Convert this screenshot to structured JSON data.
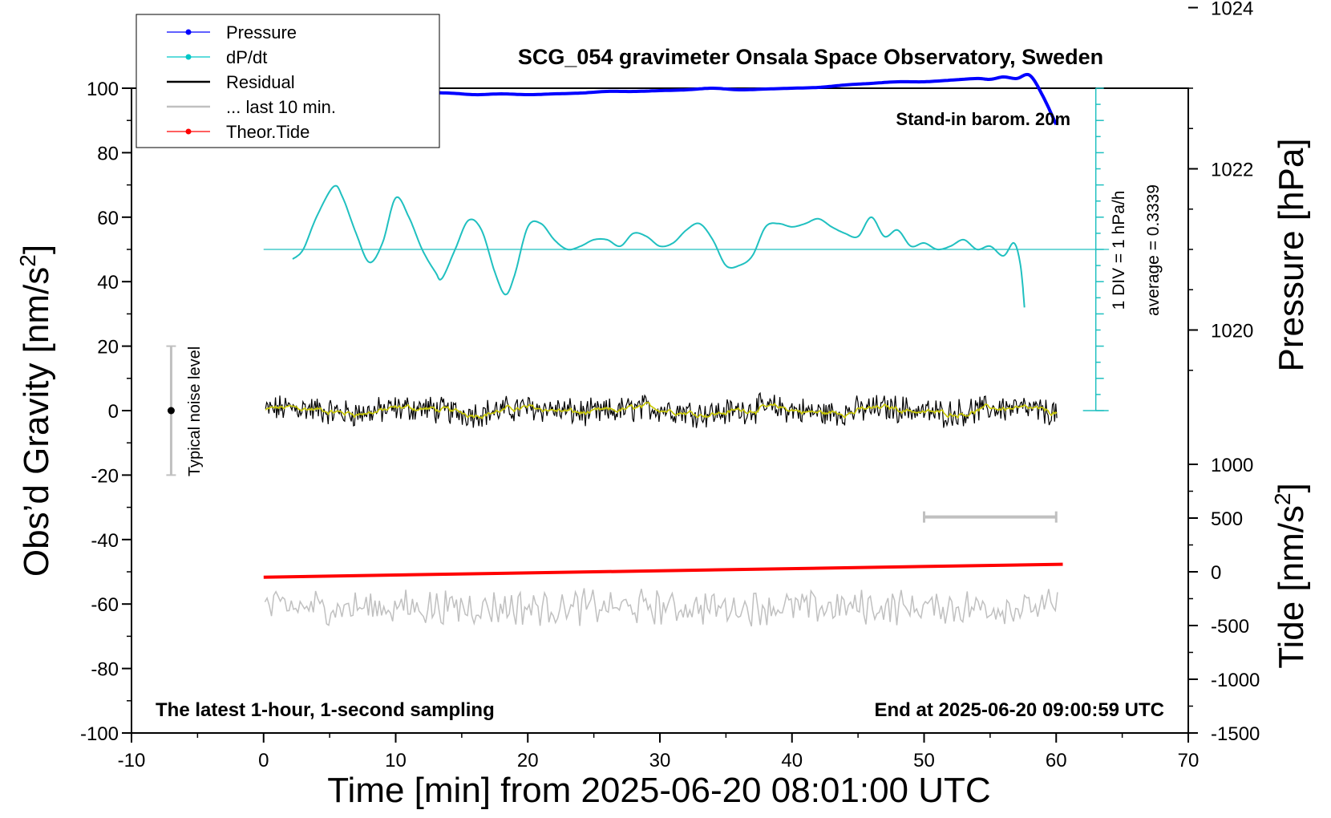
{
  "chart_data": {
    "type": "line",
    "title": "SCG_054 gravimeter Onsala Space Observatory, Sweden",
    "xlabel": "Time [min] from 2025-06-20 08:01:00 UTC",
    "ylabel_left_prefix": "Obs’d Gravity [nm/s",
    "ylabel_left_sup": "2",
    "ylabel_left_suffix": "]",
    "ylabel_right_pressure": "Pressure [hPa]",
    "ylabel_right_tide_prefix": "Tide [nm/s",
    "ylabel_right_tide_sup": "2",
    "ylabel_right_tide_suffix": "]",
    "xlim": [
      -10,
      70
    ],
    "ylim": [
      -100,
      100
    ],
    "xticks": [
      -10,
      0,
      10,
      20,
      30,
      40,
      50,
      60,
      70
    ],
    "yticks_left": [
      -100,
      -80,
      -60,
      -40,
      -20,
      0,
      20,
      40,
      60,
      80,
      100
    ],
    "pressure_axis": {
      "range": [
        1020,
        1024
      ],
      "ticks": [
        1020,
        1022,
        1024
      ],
      "grav_at_1020": 25,
      "grav_per_hPa": 25
    },
    "tide_axis": {
      "ticks": [
        -1500,
        -1000,
        -500,
        0,
        500,
        1000
      ],
      "grav_at_0": -50,
      "grav_per_unit": 0.03333
    },
    "annotations": {
      "standin": "Stand-in barom. 20m",
      "div": "1 DIV = 1 hPa/h",
      "average": "average = 0.3339",
      "noise": "Typical noise level",
      "latest": "The latest 1-hour, 1-second sampling",
      "end": "End at 2025-06-20 09:00:59 UTC"
    },
    "legend": {
      "placement": "top-left",
      "items": [
        {
          "label": "Pressure",
          "color": "#0000ff",
          "marker": true
        },
        {
          "label": "dP/dt",
          "color": "#00c8c8",
          "marker": true
        },
        {
          "label": "Residual",
          "color": "#000000",
          "marker": false
        },
        {
          "label": "... last 10 min.",
          "color": "#c0c0c0",
          "marker": false
        },
        {
          "label": "Theor.Tide",
          "color": "#ff0000",
          "marker": true
        }
      ]
    },
    "colors": {
      "pressure": "#0000ff",
      "dpdt": "#20c0c0",
      "residual": "#000000",
      "residual_smooth": "#c8c800",
      "last10": "#c0c0c0",
      "tide": "#ff0000"
    },
    "series": [
      {
        "name": "Pressure",
        "units": "hPa",
        "x": [
          0.5,
          2,
          4,
          6,
          8,
          10,
          12,
          14,
          16,
          18,
          20,
          22,
          24,
          26,
          28,
          30,
          32,
          34,
          36,
          38,
          40,
          42,
          44,
          46,
          48,
          50,
          52,
          54,
          55,
          56,
          57,
          58,
          59,
          60
        ],
        "values": [
          1022.88,
          1022.84,
          1022.86,
          1022.9,
          1022.91,
          1022.92,
          1022.94,
          1022.94,
          1022.92,
          1022.93,
          1022.92,
          1022.93,
          1022.94,
          1022.96,
          1022.96,
          1022.97,
          1022.98,
          1023.0,
          1022.98,
          1022.99,
          1023.0,
          1023.01,
          1023.04,
          1023.06,
          1023.08,
          1023.08,
          1023.1,
          1023.12,
          1023.11,
          1023.14,
          1023.12,
          1023.16,
          1022.9,
          1022.55
        ]
      },
      {
        "name": "dP/dt",
        "units": "grav-scale",
        "baseline": 50,
        "x": [
          2.2,
          3,
          4,
          5.3,
          6,
          7,
          8,
          9,
          10,
          11,
          12,
          13,
          13.5,
          14.5,
          15.5,
          16.5,
          17.5,
          18.3,
          19,
          20,
          21,
          22,
          23,
          24,
          25,
          26,
          27,
          28,
          29,
          30,
          31,
          32,
          33,
          34,
          35,
          36,
          37,
          38,
          39,
          40,
          41,
          42,
          43,
          44,
          45,
          46,
          47,
          48,
          49,
          50,
          51,
          52,
          53,
          54,
          55,
          56,
          56.8,
          57.3,
          57.6
        ],
        "values": [
          47,
          50,
          60,
          69.5,
          66,
          55,
          46,
          52,
          66,
          60,
          50,
          43,
          41,
          50,
          59,
          56,
          43,
          36,
          42,
          57,
          58,
          53,
          50,
          51,
          53,
          53,
          51,
          55,
          54,
          51,
          52,
          56,
          58,
          53,
          45,
          45,
          48,
          57,
          58,
          57,
          58,
          59.5,
          57,
          55,
          54,
          60,
          54,
          56,
          51,
          52,
          50,
          51,
          53,
          50,
          51,
          48,
          52,
          45,
          32
        ]
      },
      {
        "name": "Residual",
        "units": "nm/s2",
        "x_range": [
          0,
          60
        ],
        "sampling_s": 1,
        "typical_noise": [
          -20,
          20
        ]
      },
      {
        "name": "... last 10 min.",
        "units": "nm/s2",
        "x_range": [
          0,
          60
        ],
        "offset": -61
      },
      {
        "name": "Theor.Tide",
        "units": "nm/s2",
        "x": [
          0,
          60.5
        ],
        "values": [
          -50,
          70
        ]
      }
    ],
    "last10_bar": {
      "x": [
        50,
        60
      ],
      "y": -33
    },
    "noise_bar": {
      "x": -7,
      "y": [
        -20,
        20
      ]
    }
  }
}
